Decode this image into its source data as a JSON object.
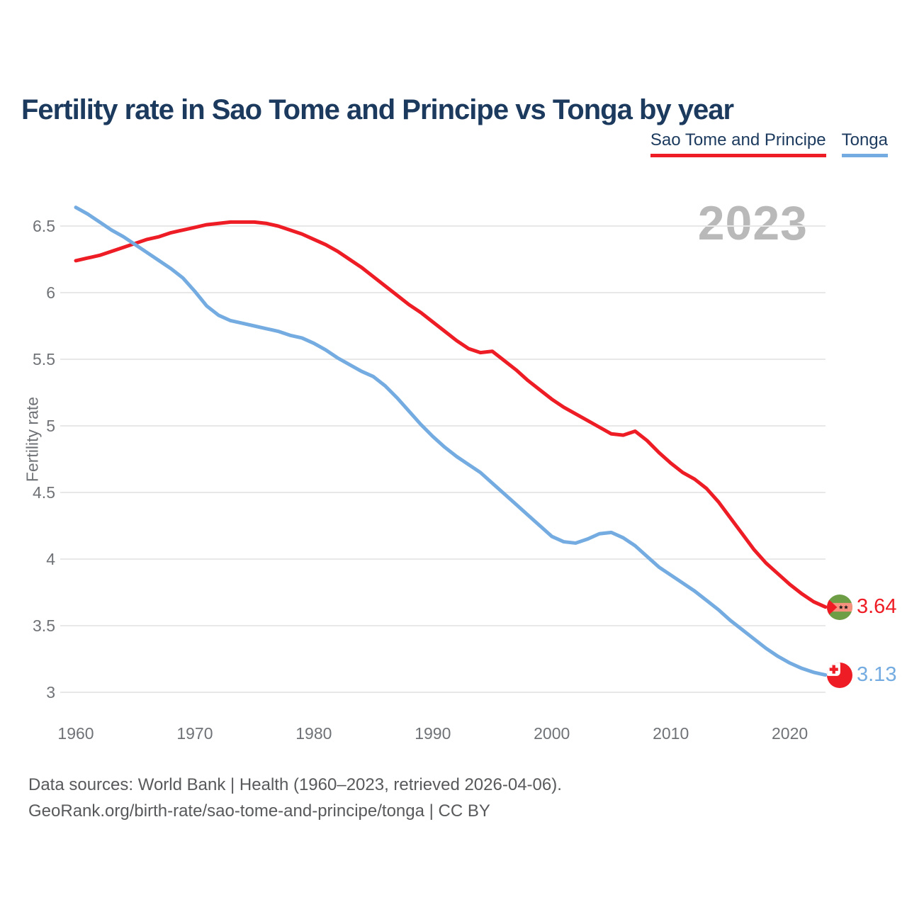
{
  "title": "Fertility rate in Sao Tome and Principe vs Tonga by year",
  "watermark": "2023",
  "legend": [
    {
      "label": "Sao Tome and Principe",
      "color": "#ee1c24"
    },
    {
      "label": "Tonga",
      "color": "#74ace1"
    }
  ],
  "y_axis": {
    "label": "Fertility rate",
    "ticks": [
      "6.5",
      "6",
      "5.5",
      "5",
      "4.5",
      "4",
      "3.5",
      "3"
    ]
  },
  "x_axis": {
    "ticks": [
      "1960",
      "1970",
      "1980",
      "1990",
      "2000",
      "2010",
      "2020"
    ]
  },
  "footer": {
    "line1": "Data sources: World Bank | Health (1960–2023, retrieved 2026-04-06).",
    "line2": "GeoRank.org/birth-rate/sao-tome-and-principe/tonga | CC BY"
  },
  "colors": {
    "red": "#ee1c24",
    "blue": "#74ace1",
    "navy": "#1c3a5e",
    "grid": "#e8e8e8",
    "axis_text": "#6f7276",
    "watermark": "#b9b9b9",
    "footer_text": "#58595b",
    "stp_flag_green": "#6d9e45",
    "stp_flag_band": "#f5917e",
    "tonga_flag_red": "#ee1c25"
  },
  "chart_data": {
    "type": "line",
    "title": "Fertility rate in Sao Tome and Principe vs Tonga by year",
    "xlabel": "",
    "ylabel": "Fertility rate",
    "xlim": [
      1960,
      2023
    ],
    "ylim": [
      3,
      6.7
    ],
    "grid": "horizontal",
    "legend_position": "top-right",
    "x": [
      1960,
      1961,
      1962,
      1963,
      1964,
      1965,
      1966,
      1967,
      1968,
      1969,
      1970,
      1971,
      1972,
      1973,
      1974,
      1975,
      1976,
      1977,
      1978,
      1979,
      1980,
      1981,
      1982,
      1983,
      1984,
      1985,
      1986,
      1987,
      1988,
      1989,
      1990,
      1991,
      1992,
      1993,
      1994,
      1995,
      1996,
      1997,
      1998,
      1999,
      2000,
      2001,
      2002,
      2003,
      2004,
      2005,
      2006,
      2007,
      2008,
      2009,
      2010,
      2011,
      2012,
      2013,
      2014,
      2015,
      2016,
      2017,
      2018,
      2019,
      2020,
      2021,
      2022,
      2023
    ],
    "series": [
      {
        "name": "Sao Tome and Principe",
        "color": "#ee1c24",
        "end_label": "3.64",
        "values": [
          6.24,
          6.26,
          6.28,
          6.31,
          6.34,
          6.37,
          6.4,
          6.42,
          6.45,
          6.47,
          6.49,
          6.51,
          6.52,
          6.53,
          6.53,
          6.53,
          6.52,
          6.5,
          6.47,
          6.44,
          6.4,
          6.36,
          6.31,
          6.25,
          6.19,
          6.12,
          6.05,
          5.98,
          5.91,
          5.85,
          5.78,
          5.71,
          5.64,
          5.58,
          5.55,
          5.56,
          5.49,
          5.42,
          5.34,
          5.27,
          5.2,
          5.14,
          5.09,
          5.04,
          4.99,
          4.94,
          4.93,
          4.96,
          4.89,
          4.8,
          4.72,
          4.65,
          4.6,
          4.53,
          4.43,
          4.31,
          4.19,
          4.07,
          3.97,
          3.89,
          3.81,
          3.74,
          3.68,
          3.64
        ]
      },
      {
        "name": "Tonga",
        "color": "#74ace1",
        "end_label": "3.13",
        "values": [
          6.64,
          6.59,
          6.53,
          6.47,
          6.42,
          6.36,
          6.3,
          6.24,
          6.18,
          6.11,
          6.01,
          5.9,
          5.83,
          5.79,
          5.77,
          5.75,
          5.73,
          5.71,
          5.68,
          5.66,
          5.62,
          5.57,
          5.51,
          5.46,
          5.41,
          5.37,
          5.3,
          5.21,
          5.11,
          5.01,
          4.92,
          4.84,
          4.77,
          4.71,
          4.65,
          4.57,
          4.49,
          4.41,
          4.33,
          4.25,
          4.17,
          4.13,
          4.12,
          4.15,
          4.19,
          4.2,
          4.16,
          4.1,
          4.02,
          3.94,
          3.88,
          3.82,
          3.76,
          3.69,
          3.62,
          3.54,
          3.47,
          3.4,
          3.33,
          3.27,
          3.22,
          3.18,
          3.15,
          3.13
        ]
      }
    ]
  }
}
